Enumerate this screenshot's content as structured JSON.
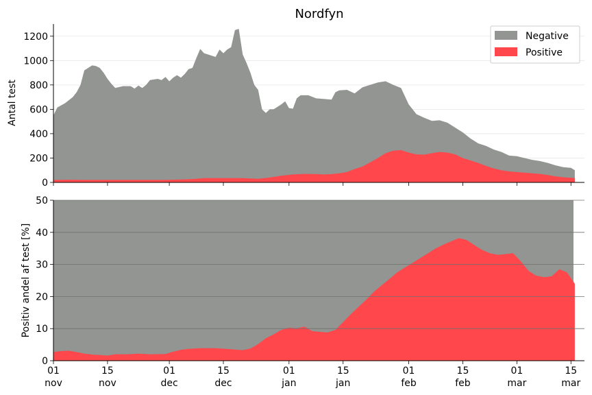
{
  "chart_data": [
    {
      "type": "area",
      "stacked": true,
      "title": "Nordfyn",
      "xlabel": "",
      "ylabel": "Antal test",
      "ylim": [
        0,
        1300
      ],
      "yticks": [
        0,
        200,
        400,
        600,
        800,
        1000,
        1200
      ],
      "grid": true,
      "legend_position": "top-right",
      "x_start": "2020-11-01",
      "x_end": "2021-03-16",
      "xticks": [
        {
          "date": "2020-11-01",
          "day": "01",
          "month": "nov"
        },
        {
          "date": "2020-11-15",
          "day": "15",
          "month": "nov"
        },
        {
          "date": "2020-12-01",
          "day": "01",
          "month": "dec"
        },
        {
          "date": "2020-12-15",
          "day": "15",
          "month": "dec"
        },
        {
          "date": "2021-01-01",
          "day": "01",
          "month": "jan"
        },
        {
          "date": "2021-01-15",
          "day": "15",
          "month": "jan"
        },
        {
          "date": "2021-02-01",
          "day": "01",
          "month": "feb"
        },
        {
          "date": "2021-02-15",
          "day": "15",
          "month": "feb"
        },
        {
          "date": "2021-03-01",
          "day": "01",
          "month": "mar"
        },
        {
          "date": "2021-03-15",
          "day": "15",
          "month": "mar"
        }
      ],
      "series": [
        {
          "name": "Negative",
          "color": "#929591",
          "points": [
            [
              "2020-11-01",
              550
            ],
            [
              "2020-11-02",
              615
            ],
            [
              "2020-11-04",
              650
            ],
            [
              "2020-11-06",
              700
            ],
            [
              "2020-11-07",
              740
            ],
            [
              "2020-11-08",
              800
            ],
            [
              "2020-11-09",
              920
            ],
            [
              "2020-11-10",
              940
            ],
            [
              "2020-11-11",
              960
            ],
            [
              "2020-11-12",
              955
            ],
            [
              "2020-11-13",
              940
            ],
            [
              "2020-11-14",
              900
            ],
            [
              "2020-11-15",
              850
            ],
            [
              "2020-11-16",
              810
            ],
            [
              "2020-11-17",
              775
            ],
            [
              "2020-11-19",
              790
            ],
            [
              "2020-11-21",
              790
            ],
            [
              "2020-11-22",
              770
            ],
            [
              "2020-11-23",
              795
            ],
            [
              "2020-11-24",
              775
            ],
            [
              "2020-11-25",
              800
            ],
            [
              "2020-11-26",
              840
            ],
            [
              "2020-11-28",
              850
            ],
            [
              "2020-11-29",
              840
            ],
            [
              "2020-11-30",
              865
            ],
            [
              "2020-12-01",
              830
            ],
            [
              "2020-12-02",
              860
            ],
            [
              "2020-12-03",
              880
            ],
            [
              "2020-12-04",
              860
            ],
            [
              "2020-12-05",
              890
            ],
            [
              "2020-12-06",
              930
            ],
            [
              "2020-12-07",
              940
            ],
            [
              "2020-12-08",
              1020
            ],
            [
              "2020-12-09",
              1095
            ],
            [
              "2020-12-10",
              1060
            ],
            [
              "2020-12-11",
              1050
            ],
            [
              "2020-12-12",
              1040
            ],
            [
              "2020-12-13",
              1030
            ],
            [
              "2020-12-14",
              1090
            ],
            [
              "2020-12-15",
              1060
            ],
            [
              "2020-12-16",
              1090
            ],
            [
              "2020-12-17",
              1110
            ],
            [
              "2020-12-18",
              1250
            ],
            [
              "2020-12-19",
              1260
            ],
            [
              "2020-12-20",
              1050
            ],
            [
              "2020-12-21",
              980
            ],
            [
              "2020-12-22",
              900
            ],
            [
              "2020-12-23",
              800
            ],
            [
              "2020-12-24",
              760
            ],
            [
              "2020-12-25",
              600
            ],
            [
              "2020-12-26",
              570
            ],
            [
              "2020-12-27",
              600
            ],
            [
              "2020-12-28",
              600
            ],
            [
              "2020-12-30",
              640
            ],
            [
              "2020-12-31",
              665
            ],
            [
              "2021-01-01",
              610
            ],
            [
              "2021-01-02",
              605
            ],
            [
              "2021-01-03",
              690
            ],
            [
              "2021-01-04",
              715
            ],
            [
              "2021-01-06",
              715
            ],
            [
              "2021-01-08",
              690
            ],
            [
              "2021-01-10",
              685
            ],
            [
              "2021-01-12",
              680
            ],
            [
              "2021-01-13",
              740
            ],
            [
              "2021-01-14",
              755
            ],
            [
              "2021-01-16",
              760
            ],
            [
              "2021-01-18",
              730
            ],
            [
              "2021-01-20",
              780
            ],
            [
              "2021-01-22",
              800
            ],
            [
              "2021-01-24",
              820
            ],
            [
              "2021-01-26",
              830
            ],
            [
              "2021-01-28",
              800
            ],
            [
              "2021-01-30",
              775
            ],
            [
              "2021-02-01",
              640
            ],
            [
              "2021-02-03",
              560
            ],
            [
              "2021-02-05",
              530
            ],
            [
              "2021-02-07",
              505
            ],
            [
              "2021-02-09",
              510
            ],
            [
              "2021-02-11",
              490
            ],
            [
              "2021-02-13",
              450
            ],
            [
              "2021-02-15",
              410
            ],
            [
              "2021-02-17",
              360
            ],
            [
              "2021-02-19",
              320
            ],
            [
              "2021-02-21",
              300
            ],
            [
              "2021-02-23",
              270
            ],
            [
              "2021-02-25",
              250
            ],
            [
              "2021-02-27",
              220
            ],
            [
              "2021-03-01",
              215
            ],
            [
              "2021-03-03",
              200
            ],
            [
              "2021-03-05",
              185
            ],
            [
              "2021-03-07",
              175
            ],
            [
              "2021-03-09",
              160
            ],
            [
              "2021-03-11",
              140
            ],
            [
              "2021-03-13",
              125
            ],
            [
              "2021-03-15",
              120
            ],
            [
              "2021-03-16",
              100
            ]
          ]
        },
        {
          "name": "Positive",
          "color": "#ff474c",
          "points": [
            [
              "2020-11-01",
              20
            ],
            [
              "2020-11-05",
              22
            ],
            [
              "2020-11-10",
              20
            ],
            [
              "2020-11-15",
              20
            ],
            [
              "2020-11-20",
              20
            ],
            [
              "2020-11-25",
              20
            ],
            [
              "2020-11-30",
              20
            ],
            [
              "2020-12-05",
              25
            ],
            [
              "2020-12-08",
              30
            ],
            [
              "2020-12-10",
              35
            ],
            [
              "2020-12-15",
              35
            ],
            [
              "2020-12-20",
              35
            ],
            [
              "2020-12-24",
              30
            ],
            [
              "2020-12-27",
              40
            ],
            [
              "2020-12-30",
              55
            ],
            [
              "2021-01-02",
              65
            ],
            [
              "2021-01-05",
              70
            ],
            [
              "2021-01-08",
              68
            ],
            [
              "2021-01-10",
              65
            ],
            [
              "2021-01-12",
              68
            ],
            [
              "2021-01-14",
              75
            ],
            [
              "2021-01-16",
              85
            ],
            [
              "2021-01-18",
              110
            ],
            [
              "2021-01-20",
              130
            ],
            [
              "2021-01-22",
              165
            ],
            [
              "2021-01-24",
              200
            ],
            [
              "2021-01-26",
              240
            ],
            [
              "2021-01-28",
              260
            ],
            [
              "2021-01-30",
              265
            ],
            [
              "2021-02-01",
              245
            ],
            [
              "2021-02-03",
              230
            ],
            [
              "2021-02-05",
              228
            ],
            [
              "2021-02-07",
              240
            ],
            [
              "2021-02-09",
              250
            ],
            [
              "2021-02-11",
              245
            ],
            [
              "2021-02-13",
              230
            ],
            [
              "2021-02-15",
              200
            ],
            [
              "2021-02-17",
              180
            ],
            [
              "2021-02-19",
              160
            ],
            [
              "2021-02-21",
              135
            ],
            [
              "2021-02-23",
              115
            ],
            [
              "2021-02-25",
              100
            ],
            [
              "2021-02-27",
              90
            ],
            [
              "2021-03-01",
              85
            ],
            [
              "2021-03-03",
              80
            ],
            [
              "2021-03-05",
              75
            ],
            [
              "2021-03-07",
              70
            ],
            [
              "2021-03-09",
              60
            ],
            [
              "2021-03-11",
              50
            ],
            [
              "2021-03-13",
              42
            ],
            [
              "2021-03-16",
              35
            ]
          ]
        }
      ]
    },
    {
      "type": "area",
      "title": "",
      "xlabel": "",
      "ylabel": "Positiv andel af test [%]",
      "ylim": [
        0,
        50
      ],
      "yticks": [
        0,
        10,
        20,
        30,
        40,
        50
      ],
      "grid": true,
      "background_color": "#929591",
      "series": [
        {
          "name": "Positiv andel",
          "color": "#ff474c",
          "points": [
            [
              "2020-11-01",
              2.7
            ],
            [
              "2020-11-03",
              3.0
            ],
            [
              "2020-11-05",
              3.1
            ],
            [
              "2020-11-07",
              2.7
            ],
            [
              "2020-11-09",
              2.2
            ],
            [
              "2020-11-11",
              1.9
            ],
            [
              "2020-11-13",
              1.8
            ],
            [
              "2020-11-15",
              1.6
            ],
            [
              "2020-11-17",
              2.0
            ],
            [
              "2020-11-20",
              2.0
            ],
            [
              "2020-11-23",
              2.2
            ],
            [
              "2020-11-26",
              2.0
            ],
            [
              "2020-11-30",
              2.1
            ],
            [
              "2020-12-02",
              2.8
            ],
            [
              "2020-12-04",
              3.4
            ],
            [
              "2020-12-06",
              3.7
            ],
            [
              "2020-12-09",
              3.9
            ],
            [
              "2020-12-13",
              3.9
            ],
            [
              "2020-12-17",
              3.6
            ],
            [
              "2020-12-20",
              3.3
            ],
            [
              "2020-12-22",
              3.8
            ],
            [
              "2020-12-24",
              5.2
            ],
            [
              "2020-12-26",
              7.0
            ],
            [
              "2020-12-28",
              8.2
            ],
            [
              "2020-12-30",
              9.6
            ],
            [
              "2021-01-01",
              10.3
            ],
            [
              "2021-01-03",
              10.1
            ],
            [
              "2021-01-05",
              10.6
            ],
            [
              "2021-01-07",
              9.2
            ],
            [
              "2021-01-09",
              9.0
            ],
            [
              "2021-01-11",
              8.8
            ],
            [
              "2021-01-13",
              9.6
            ],
            [
              "2021-01-15",
              12.0
            ],
            [
              "2021-01-17",
              14.5
            ],
            [
              "2021-01-19",
              16.8
            ],
            [
              "2021-01-21",
              19.0
            ],
            [
              "2021-01-23",
              21.5
            ],
            [
              "2021-01-25",
              23.5
            ],
            [
              "2021-01-27",
              25.5
            ],
            [
              "2021-01-29",
              27.5
            ],
            [
              "2021-01-31",
              29.0
            ],
            [
              "2021-02-02",
              30.5
            ],
            [
              "2021-02-04",
              32.0
            ],
            [
              "2021-02-06",
              33.5
            ],
            [
              "2021-02-08",
              35.0
            ],
            [
              "2021-02-10",
              36.2
            ],
            [
              "2021-02-12",
              37.2
            ],
            [
              "2021-02-14",
              38.2
            ],
            [
              "2021-02-16",
              37.6
            ],
            [
              "2021-02-18",
              36.0
            ],
            [
              "2021-02-20",
              34.5
            ],
            [
              "2021-02-22",
              33.5
            ],
            [
              "2021-02-24",
              33.0
            ],
            [
              "2021-02-26",
              33.2
            ],
            [
              "2021-02-28",
              33.5
            ],
            [
              "2021-03-02",
              31.0
            ],
            [
              "2021-03-04",
              28.0
            ],
            [
              "2021-03-06",
              26.5
            ],
            [
              "2021-03-08",
              26.0
            ],
            [
              "2021-03-10",
              26.3
            ],
            [
              "2021-03-12",
              28.5
            ],
            [
              "2021-03-14",
              27.5
            ],
            [
              "2021-03-16",
              24.0
            ]
          ]
        }
      ]
    }
  ]
}
